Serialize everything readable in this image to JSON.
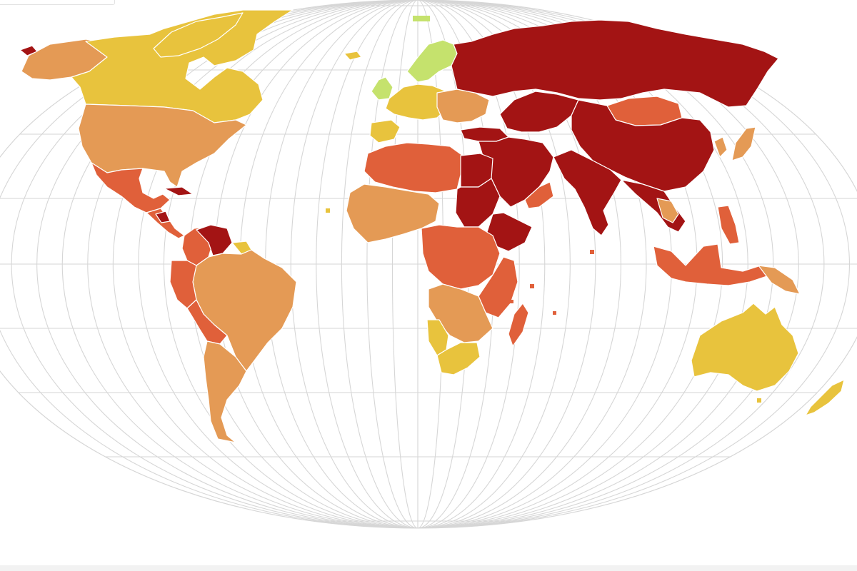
{
  "map": {
    "projection": "robinson-like",
    "background": "#ffffff",
    "graticule_color": "#d6d6d6",
    "border_color": "#ffffff",
    "palette": {
      "good": "#c5e26d",
      "satisfactory": "#e8c33d",
      "problematic": "#e49a55",
      "difficult": "#e0603a",
      "very_serious": "#a31414"
    },
    "regions": [
      {
        "name": "alaska",
        "category": "problematic"
      },
      {
        "name": "canada",
        "category": "satisfactory"
      },
      {
        "name": "greenland",
        "category": "satisfactory"
      },
      {
        "name": "united-states",
        "category": "problematic"
      },
      {
        "name": "mexico",
        "category": "difficult"
      },
      {
        "name": "central-america",
        "category": "difficult"
      },
      {
        "name": "cuba",
        "category": "very_serious"
      },
      {
        "name": "nicaragua",
        "category": "very_serious"
      },
      {
        "name": "colombia",
        "category": "difficult"
      },
      {
        "name": "venezuela",
        "category": "very_serious"
      },
      {
        "name": "guianas",
        "category": "satisfactory"
      },
      {
        "name": "peru",
        "category": "difficult"
      },
      {
        "name": "bolivia",
        "category": "difficult"
      },
      {
        "name": "brazil",
        "category": "problematic"
      },
      {
        "name": "southern-cone",
        "category": "problematic"
      },
      {
        "name": "nordics",
        "category": "good"
      },
      {
        "name": "western-europe",
        "category": "satisfactory"
      },
      {
        "name": "iberia",
        "category": "satisfactory"
      },
      {
        "name": "central-eastern-europe",
        "category": "problematic"
      },
      {
        "name": "turkey",
        "category": "very_serious"
      },
      {
        "name": "russia",
        "category": "very_serious"
      },
      {
        "name": "central-asia",
        "category": "very_serious"
      },
      {
        "name": "mongolia",
        "category": "difficult"
      },
      {
        "name": "china",
        "category": "very_serious"
      },
      {
        "name": "japan",
        "category": "problematic"
      },
      {
        "name": "korea",
        "category": "problematic"
      },
      {
        "name": "middle-east",
        "category": "very_serious"
      },
      {
        "name": "oman-yemen",
        "category": "difficult"
      },
      {
        "name": "india",
        "category": "very_serious"
      },
      {
        "name": "southeast-asia",
        "category": "very_serious"
      },
      {
        "name": "indochina-south",
        "category": "problematic"
      },
      {
        "name": "philippines",
        "category": "difficult"
      },
      {
        "name": "indonesia",
        "category": "difficult"
      },
      {
        "name": "papua-new-guinea",
        "category": "problematic"
      },
      {
        "name": "australia",
        "category": "satisfactory"
      },
      {
        "name": "new-zealand",
        "category": "satisfactory"
      },
      {
        "name": "north-africa",
        "category": "difficult"
      },
      {
        "name": "egypt",
        "category": "very_serious"
      },
      {
        "name": "sudan",
        "category": "very_serious"
      },
      {
        "name": "west-africa",
        "category": "problematic"
      },
      {
        "name": "central-africa",
        "category": "difficult"
      },
      {
        "name": "horn-of-africa",
        "category": "very_serious"
      },
      {
        "name": "east-africa",
        "category": "difficult"
      },
      {
        "name": "southern-africa",
        "category": "problematic"
      },
      {
        "name": "namibia",
        "category": "satisfactory"
      },
      {
        "name": "south-africa",
        "category": "satisfactory"
      },
      {
        "name": "madagascar",
        "category": "difficult"
      },
      {
        "name": "iceland",
        "category": "satisfactory"
      },
      {
        "name": "uk-ireland",
        "category": "good"
      }
    ]
  }
}
